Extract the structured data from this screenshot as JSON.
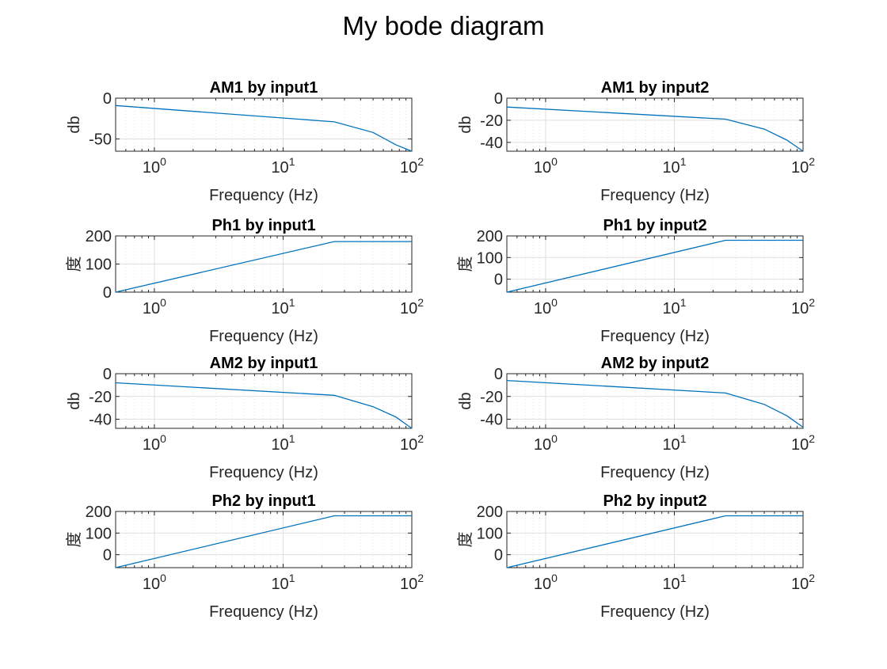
{
  "figure": {
    "title": "My bode diagram"
  },
  "chart_data": [
    {
      "type": "line",
      "title": "AM1 by input1",
      "xlabel": "Frequency (Hz)",
      "ylabel": "db",
      "xscale": "log",
      "xlim": [
        0.5,
        100
      ],
      "ylim": [
        -65,
        0
      ],
      "ytick_labels": [
        "0",
        "-50"
      ],
      "ytick_values": [
        0,
        -50
      ],
      "xtick_labels": [
        "10^0",
        "10^1",
        "10^2"
      ],
      "xtick_values": [
        1,
        10,
        100
      ],
      "grid": true,
      "series": [
        {
          "x": [
            0.5,
            25,
            50,
            75,
            100
          ],
          "y": [
            -9,
            -29,
            -42,
            -57,
            -65
          ]
        }
      ]
    },
    {
      "type": "line",
      "title": "AM1 by input2",
      "xlabel": "Frequency (Hz)",
      "ylabel": "db",
      "xscale": "log",
      "xlim": [
        0.5,
        100
      ],
      "ylim": [
        -48,
        0
      ],
      "ytick_labels": [
        "0",
        "-20",
        "-40"
      ],
      "ytick_values": [
        0,
        -20,
        -40
      ],
      "xtick_labels": [
        "10^0",
        "10^1",
        "10^2"
      ],
      "xtick_values": [
        1,
        10,
        100
      ],
      "grid": true,
      "series": [
        {
          "x": [
            0.5,
            25,
            50,
            75,
            100
          ],
          "y": [
            -8,
            -19,
            -28,
            -38,
            -48
          ]
        }
      ]
    },
    {
      "type": "line",
      "title": "Ph1 by input1",
      "xlabel": "Frequency (Hz)",
      "ylabel": "度",
      "xscale": "log",
      "xlim": [
        0.5,
        100
      ],
      "ylim": [
        0,
        200
      ],
      "ytick_labels": [
        "200",
        "100",
        "0"
      ],
      "ytick_values": [
        200,
        100,
        0
      ],
      "xtick_labels": [
        "10^0",
        "10^1",
        "10^2"
      ],
      "xtick_values": [
        1,
        10,
        100
      ],
      "grid": true,
      "series": [
        {
          "x": [
            0.5,
            25,
            100
          ],
          "y": [
            0,
            180,
            180
          ]
        }
      ]
    },
    {
      "type": "line",
      "title": "Ph1 by input2",
      "xlabel": "Frequency (Hz)",
      "ylabel": "度",
      "xscale": "log",
      "xlim": [
        0.5,
        100
      ],
      "ylim": [
        -60,
        200
      ],
      "ytick_labels": [
        "200",
        "100",
        "0"
      ],
      "ytick_values": [
        200,
        100,
        0
      ],
      "xtick_labels": [
        "10^0",
        "10^1",
        "10^2"
      ],
      "xtick_values": [
        1,
        10,
        100
      ],
      "grid": true,
      "series": [
        {
          "x": [
            0.5,
            25,
            100
          ],
          "y": [
            -60,
            180,
            180
          ]
        }
      ]
    },
    {
      "type": "line",
      "title": "AM2 by input1",
      "xlabel": "Frequency (Hz)",
      "ylabel": "db",
      "xscale": "log",
      "xlim": [
        0.5,
        100
      ],
      "ylim": [
        -48,
        0
      ],
      "ytick_labels": [
        "0",
        "-20",
        "-40"
      ],
      "ytick_values": [
        0,
        -20,
        -40
      ],
      "xtick_labels": [
        "10^0",
        "10^1",
        "10^2"
      ],
      "xtick_values": [
        1,
        10,
        100
      ],
      "grid": true,
      "series": [
        {
          "x": [
            0.5,
            25,
            50,
            75,
            100
          ],
          "y": [
            -8,
            -19,
            -29,
            -38,
            -48
          ]
        }
      ]
    },
    {
      "type": "line",
      "title": "AM2 by input2",
      "xlabel": "Frequency (Hz)",
      "ylabel": "db",
      "xscale": "log",
      "xlim": [
        0.5,
        100
      ],
      "ylim": [
        -48,
        0
      ],
      "ytick_labels": [
        "0",
        "-20",
        "-40"
      ],
      "ytick_values": [
        0,
        -20,
        -40
      ],
      "xtick_labels": [
        "10^0",
        "10^1",
        "10^2"
      ],
      "xtick_values": [
        1,
        10,
        100
      ],
      "grid": true,
      "series": [
        {
          "x": [
            0.5,
            25,
            50,
            75,
            100
          ],
          "y": [
            -6,
            -17,
            -27,
            -37,
            -47
          ]
        }
      ]
    },
    {
      "type": "line",
      "title": "Ph2 by input1",
      "xlabel": "Frequency (Hz)",
      "ylabel": "度",
      "xscale": "log",
      "xlim": [
        0.5,
        100
      ],
      "ylim": [
        -60,
        200
      ],
      "ytick_labels": [
        "200",
        "100",
        "0"
      ],
      "ytick_values": [
        200,
        100,
        0
      ],
      "xtick_labels": [
        "10^0",
        "10^1",
        "10^2"
      ],
      "xtick_values": [
        1,
        10,
        100
      ],
      "grid": true,
      "series": [
        {
          "x": [
            0.5,
            25,
            100
          ],
          "y": [
            -60,
            180,
            180
          ]
        }
      ]
    },
    {
      "type": "line",
      "title": "Ph2 by input2",
      "xlabel": "Frequency (Hz)",
      "ylabel": "度",
      "xscale": "log",
      "xlim": [
        0.5,
        100
      ],
      "ylim": [
        -60,
        200
      ],
      "ytick_labels": [
        "200",
        "100",
        "0"
      ],
      "ytick_values": [
        200,
        100,
        0
      ],
      "xtick_labels": [
        "10^0",
        "10^1",
        "10^2"
      ],
      "xtick_values": [
        1,
        10,
        100
      ],
      "grid": true,
      "series": [
        {
          "x": [
            0.5,
            25,
            100
          ],
          "y": [
            -60,
            180,
            180
          ]
        }
      ]
    }
  ],
  "colors": {
    "line": "#0072bd",
    "axes": "#262626",
    "grid": "#dfdfdf",
    "text": "#262626"
  }
}
